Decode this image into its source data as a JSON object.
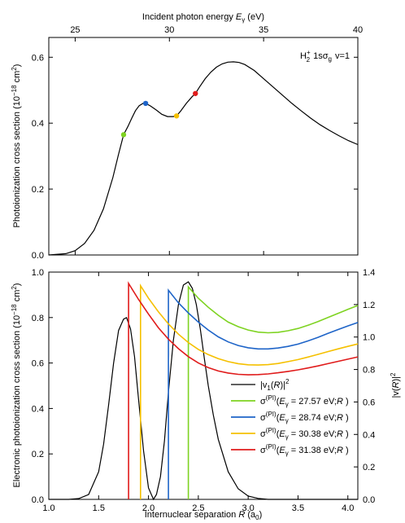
{
  "chart_data": [
    {
      "type": "line",
      "panel": "top",
      "annotation": {
        "main": "H",
        "sup": "+",
        "sub": "2",
        "rest": "1sσ",
        "rest_sub": "g",
        "tail": "v=1"
      },
      "xlabel_top": {
        "text": "Incident photon energy ",
        "var": "E",
        "var_sub": "γ",
        "unit": " (eV)"
      },
      "ylabel": {
        "text": "Photoionization cross section (10",
        "sup": "−18",
        "unit": " cm",
        "unit_sup": "2",
        "close": ")"
      },
      "xlim_energy": [
        23.6,
        40
      ],
      "ylim": [
        0,
        0.66
      ],
      "xticks": [
        25,
        30,
        35,
        40
      ],
      "yticks": [
        0.0,
        0.2,
        0.4,
        0.6
      ],
      "ytick_labels": [
        "0.0",
        "0.2",
        "0.4",
        "0.6"
      ],
      "grid": false,
      "series": [
        {
          "color": "#000000",
          "x": [
            23.6,
            24.5,
            25.0,
            25.5,
            26.0,
            26.5,
            27.0,
            27.3,
            27.57,
            27.8,
            28.0,
            28.2,
            28.4,
            28.6,
            28.74,
            29.0,
            29.3,
            29.6,
            29.9,
            30.2,
            30.38,
            30.6,
            30.9,
            31.2,
            31.38,
            31.6,
            31.9,
            32.2,
            32.5,
            32.8,
            33.1,
            33.4,
            33.7,
            34.0,
            34.5,
            35.0,
            35.5,
            36.0,
            36.5,
            37.0,
            37.5,
            38.0,
            38.5,
            39.0,
            39.5,
            40.0
          ],
          "y": [
            0.0,
            0.004,
            0.013,
            0.035,
            0.075,
            0.14,
            0.235,
            0.305,
            0.365,
            0.39,
            0.415,
            0.438,
            0.453,
            0.46,
            0.46,
            0.452,
            0.44,
            0.427,
            0.42,
            0.42,
            0.422,
            0.437,
            0.46,
            0.48,
            0.49,
            0.51,
            0.535,
            0.555,
            0.57,
            0.58,
            0.585,
            0.586,
            0.584,
            0.578,
            0.56,
            0.535,
            0.51,
            0.485,
            0.46,
            0.437,
            0.415,
            0.395,
            0.378,
            0.362,
            0.347,
            0.335
          ]
        }
      ],
      "markers": [
        {
          "energy": 27.57,
          "y": 0.365,
          "color": "#7ed321"
        },
        {
          "energy": 28.74,
          "y": 0.46,
          "color": "#1e64c8"
        },
        {
          "energy": 30.38,
          "y": 0.422,
          "color": "#f5c000"
        },
        {
          "energy": 31.38,
          "y": 0.49,
          "color": "#e01b1b"
        }
      ]
    },
    {
      "type": "line",
      "panel": "bottom",
      "xlabel": {
        "text": "Internuclear separation ",
        "var": "R",
        "unit": " (a",
        "unit_sub": "0",
        "close": ")"
      },
      "ylabel": {
        "text": "Electronic photoionization cross section (10",
        "sup": "−18",
        "unit": " cm",
        "unit_sup": "2",
        "close": ")"
      },
      "ylabel_right": {
        "text": "|v(",
        "var": "R",
        "close": ")|",
        "sup": "2"
      },
      "xlim": [
        1.0,
        4.1
      ],
      "ylim": [
        0,
        1.0
      ],
      "ylim_right": [
        0,
        1.4
      ],
      "xticks": [
        1.0,
        1.5,
        2.0,
        2.5,
        3.0,
        3.5,
        4.0
      ],
      "xtick_labels": [
        "1.0",
        "1.5",
        "2.0",
        "2.5",
        "3.0",
        "3.5",
        "4.0"
      ],
      "yticks": [
        0.0,
        0.2,
        0.4,
        0.6,
        0.8,
        1.0
      ],
      "ytick_labels": [
        "0.0",
        "0.2",
        "0.4",
        "0.6",
        "0.8",
        "1.0"
      ],
      "yticks_right": [
        0.0,
        0.2,
        0.4,
        0.6,
        0.8,
        1.0,
        1.2,
        1.4
      ],
      "ytick_labels_right": [
        "0.0",
        "0.2",
        "0.4",
        "0.6",
        "0.8",
        "1.0",
        "1.2",
        "1.4"
      ],
      "grid": false,
      "series": [
        {
          "color": "#000000",
          "axis": "right",
          "legend": {
            "pre": "|v",
            "sub": "1",
            "mid": "(",
            "var": "R",
            "post": ")|",
            "sup": "2"
          },
          "x": [
            1.0,
            1.2,
            1.3,
            1.4,
            1.5,
            1.55,
            1.6,
            1.65,
            1.7,
            1.75,
            1.78,
            1.82,
            1.86,
            1.9,
            1.95,
            2.0,
            2.05,
            2.08,
            2.12,
            2.16,
            2.2,
            2.25,
            2.3,
            2.35,
            2.4,
            2.44,
            2.48,
            2.52,
            2.56,
            2.6,
            2.65,
            2.7,
            2.8,
            2.9,
            3.0,
            3.1,
            3.2,
            3.3,
            3.5,
            4.1
          ],
          "y": [
            0.0,
            0.0,
            0.005,
            0.03,
            0.17,
            0.34,
            0.58,
            0.84,
            1.04,
            1.11,
            1.12,
            1.05,
            0.88,
            0.62,
            0.3,
            0.07,
            0.0,
            0.03,
            0.14,
            0.36,
            0.66,
            0.98,
            1.2,
            1.32,
            1.34,
            1.3,
            1.2,
            1.05,
            0.87,
            0.7,
            0.52,
            0.37,
            0.17,
            0.065,
            0.02,
            0.006,
            0.0,
            0.0,
            0.0,
            0.0
          ]
        },
        {
          "color": "#7ed321",
          "axis": "left",
          "legend": {
            "pre": "σ",
            "sup": "(PI)",
            "mid": "(",
            "var": "E",
            "var_sub": "γ",
            "post": " = 27.57 eV;",
            "var2": "R",
            "close": " )"
          },
          "x": [
            2.4,
            2.4,
            2.45,
            2.5,
            2.6,
            2.7,
            2.8,
            2.9,
            3.0,
            3.1,
            3.2,
            3.3,
            3.4,
            3.5,
            3.6,
            3.7,
            3.8,
            3.9,
            4.0,
            4.1
          ],
          "y": [
            0.0,
            0.935,
            0.91,
            0.885,
            0.845,
            0.81,
            0.78,
            0.76,
            0.745,
            0.736,
            0.733,
            0.735,
            0.742,
            0.752,
            0.766,
            0.782,
            0.8,
            0.818,
            0.836,
            0.853
          ]
        },
        {
          "color": "#1e64c8",
          "axis": "left",
          "legend": {
            "pre": "σ",
            "sup": "(PI)",
            "mid": "(",
            "var": "E",
            "var_sub": "γ",
            "post": " = 28.74 eV;",
            "var2": "R",
            "close": " )"
          },
          "x": [
            2.2,
            2.2,
            2.3,
            2.4,
            2.5,
            2.6,
            2.7,
            2.8,
            2.9,
            3.0,
            3.1,
            3.2,
            3.3,
            3.4,
            3.5,
            3.6,
            3.7,
            3.8,
            3.9,
            4.0,
            4.1
          ],
          "y": [
            0.0,
            0.92,
            0.865,
            0.82,
            0.78,
            0.745,
            0.715,
            0.693,
            0.677,
            0.667,
            0.662,
            0.662,
            0.666,
            0.673,
            0.683,
            0.697,
            0.713,
            0.73,
            0.747,
            0.763,
            0.778
          ]
        },
        {
          "color": "#f5c000",
          "axis": "left",
          "legend": {
            "pre": "σ",
            "sup": "(PI)",
            "mid": "(",
            "var": "E",
            "var_sub": "γ",
            "post": " = 30.38 eV;",
            "var2": "R",
            "close": " )"
          },
          "x": [
            1.92,
            1.92,
            2.0,
            2.1,
            2.2,
            2.3,
            2.4,
            2.5,
            2.6,
            2.7,
            2.8,
            2.9,
            3.0,
            3.1,
            3.2,
            3.3,
            3.4,
            3.5,
            3.6,
            3.7,
            3.8,
            3.9,
            4.0,
            4.1
          ],
          "y": [
            0.0,
            0.94,
            0.885,
            0.825,
            0.772,
            0.727,
            0.69,
            0.66,
            0.637,
            0.619,
            0.606,
            0.597,
            0.592,
            0.591,
            0.593,
            0.598,
            0.606,
            0.615,
            0.626,
            0.638,
            0.65,
            0.662,
            0.673,
            0.684
          ]
        },
        {
          "color": "#e01b1b",
          "axis": "left",
          "legend": {
            "pre": "σ",
            "sup": "(PI)",
            "mid": "(",
            "var": "E",
            "var_sub": "γ",
            "post": " = 31.38 eV;",
            "var2": "R",
            "close": " )"
          },
          "x": [
            1.8,
            1.8,
            1.9,
            2.0,
            2.1,
            2.2,
            2.3,
            2.4,
            2.5,
            2.6,
            2.7,
            2.8,
            2.9,
            3.0,
            3.1,
            3.2,
            3.3,
            3.4,
            3.5,
            3.6,
            3.7,
            3.8,
            3.9,
            4.0,
            4.1
          ],
          "y": [
            0.0,
            0.95,
            0.88,
            0.815,
            0.755,
            0.705,
            0.663,
            0.628,
            0.6,
            0.58,
            0.565,
            0.556,
            0.55,
            0.548,
            0.549,
            0.552,
            0.557,
            0.563,
            0.57,
            0.578,
            0.587,
            0.597,
            0.607,
            0.617,
            0.627
          ]
        }
      ]
    }
  ]
}
